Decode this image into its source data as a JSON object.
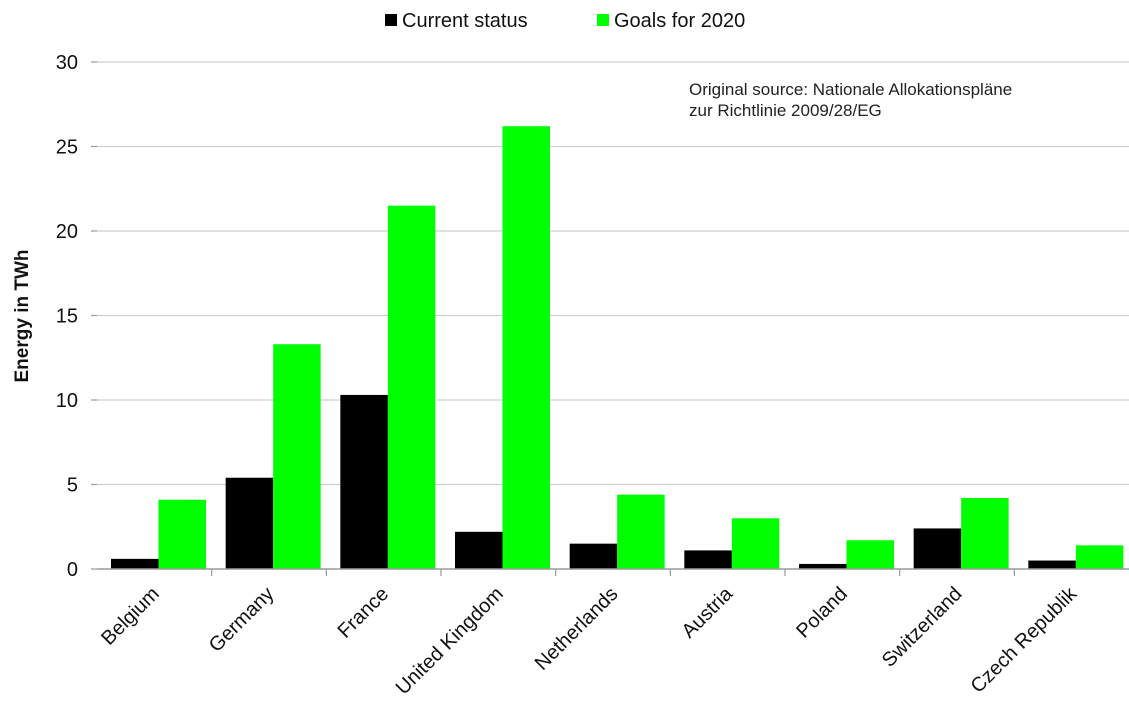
{
  "chart_data": {
    "type": "bar",
    "title": "",
    "xlabel": "",
    "ylabel": "Energy in TWh",
    "ylim": [
      0,
      30
    ],
    "yticks": [
      0,
      5,
      10,
      15,
      20,
      25,
      30
    ],
    "grid": "horizontal",
    "legend_position": "top-center",
    "categories": [
      "Belgium",
      "Germany",
      "France",
      "United Kingdom",
      "Netherlands",
      "Austria",
      "Poland",
      "Switzerland",
      "Czech Republik"
    ],
    "series": [
      {
        "name": "Current status",
        "color": "#000000",
        "values": [
          0.6,
          5.4,
          10.3,
          2.2,
          1.5,
          1.1,
          0.3,
          2.4,
          0.5
        ]
      },
      {
        "name": "Goals for 2020",
        "color": "#00ff00",
        "values": [
          4.1,
          13.3,
          21.5,
          26.2,
          4.4,
          3.0,
          1.7,
          4.2,
          1.4
        ]
      }
    ],
    "annotation": {
      "line1": "Original source: Nationale Allokationspläne",
      "line2": "zur Richtlinie 2009/28/EG"
    }
  }
}
